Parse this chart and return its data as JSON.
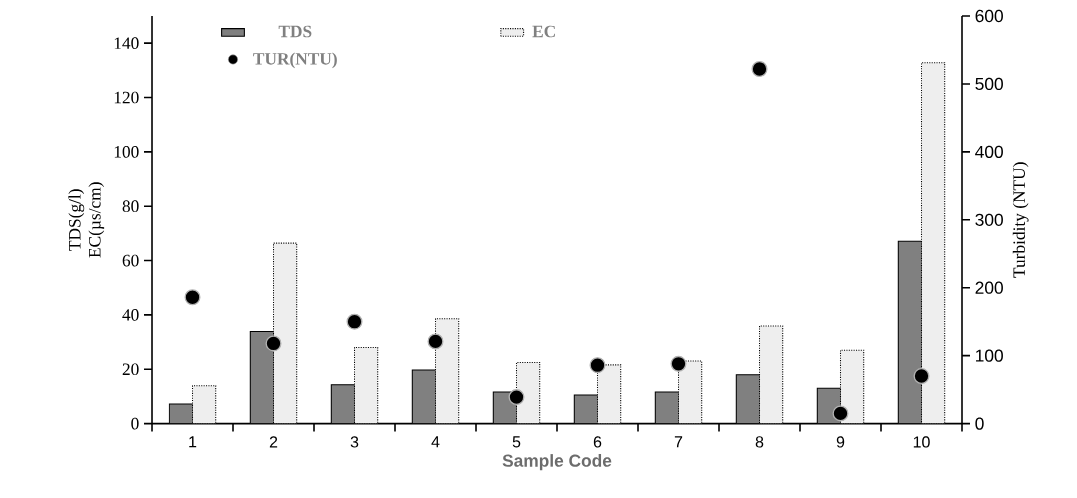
{
  "chart_data": {
    "type": "bar",
    "categories": [
      "1",
      "2",
      "3",
      "4",
      "5",
      "6",
      "7",
      "8",
      "9",
      "10"
    ],
    "series": [
      {
        "name": "TDS",
        "color": "#808080",
        "values": [
          7.2,
          33.9,
          14.3,
          19.7,
          11.6,
          10.5,
          11.6,
          18.0,
          13.0,
          67.1
        ]
      },
      {
        "name": "EC",
        "color": "#eeeeee",
        "values": [
          13.9,
          66.4,
          28.0,
          38.6,
          22.5,
          21.6,
          23.0,
          35.9,
          27.0,
          132.8
        ]
      },
      {
        "name": "TUR(NTU)",
        "type": "scatter",
        "axis": "y2",
        "color": "#000000",
        "values": [
          186,
          118,
          150,
          121,
          39,
          86,
          88,
          522,
          15,
          70
        ]
      }
    ],
    "xlabel": "Sample Code",
    "ylabel": "TDS(g/l) EC(µs/cm)",
    "y2label": "Turbidity (NTU)",
    "ylim": [
      0,
      150
    ],
    "yticks": [
      0,
      20,
      40,
      60,
      80,
      100,
      120,
      140
    ],
    "y2lim": [
      0,
      600
    ],
    "y2ticks": [
      0,
      100,
      200,
      300,
      400,
      500,
      600
    ],
    "legend": "top left",
    "marker": "circle"
  }
}
